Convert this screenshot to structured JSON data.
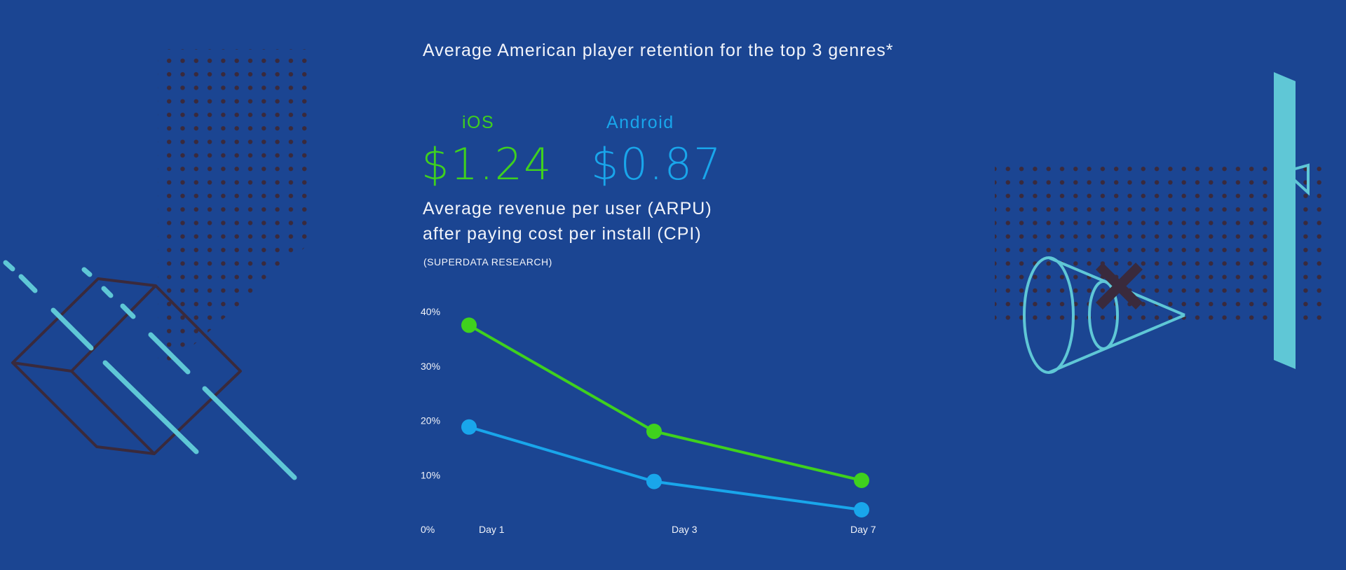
{
  "title": "Average American player retention for the top 3 genres*",
  "platforms": [
    {
      "label": "iOS",
      "arpu": "$1.24",
      "color": "#3fd11e"
    },
    {
      "label": "Android",
      "arpu": "$0.87",
      "color": "#19a6eb"
    }
  ],
  "description_line1": "Average revenue per user (ARPU)",
  "description_line2": "after paying cost per install (CPI)",
  "source": "(SUPERDATA RESEARCH)",
  "colors": {
    "background": "#1b4592",
    "accent_cyan": "#5fc7d6",
    "dots": "#3a2a3c"
  },
  "chart_data": {
    "type": "line",
    "title": "",
    "xlabel": "",
    "ylabel": "",
    "categories": [
      "Day 1",
      "Day 3",
      "Day 7"
    ],
    "ylim": [
      0,
      40
    ],
    "yticks": [
      "0%",
      "10%",
      "20%",
      "30%",
      "40%"
    ],
    "series": [
      {
        "values": [
          37.5,
          18,
          9
        ],
        "color": "#3fd11e"
      },
      {
        "values": [
          18.8,
          8.8,
          3.6
        ],
        "color": "#19a6eb"
      }
    ]
  }
}
